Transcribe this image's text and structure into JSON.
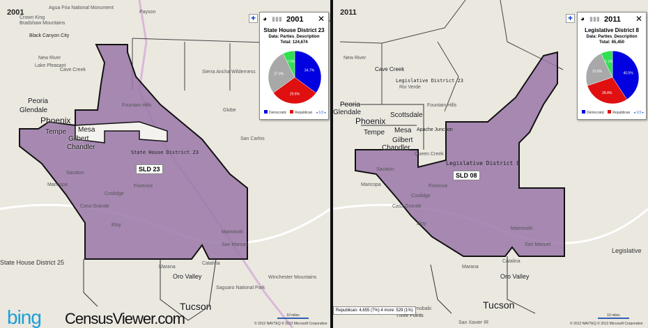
{
  "left": {
    "year": "2001",
    "district_label": "SLD 23",
    "district_name_on_map": "State House District 23",
    "adjacent_district": "State House District 25",
    "popup": {
      "year": "2001",
      "title": "State House District 23",
      "data": "Data: Parties_Description",
      "total": "Total: 124,674",
      "slices": [
        {
          "party": "Democratic",
          "pct": 34.7,
          "label": "34.7%",
          "color": "#0000e0"
        },
        {
          "party": "Republican",
          "pct": 29.6,
          "label": "29.6%",
          "color": "#e01010"
        },
        {
          "party": "Other",
          "pct": 27.4,
          "label": "27.4%",
          "color": "#a8a8a8"
        },
        {
          "party": "Other",
          "pct": 7.2,
          "label": "7.2%",
          "color": "#30e050"
        }
      ],
      "legend": [
        "Democratic",
        "Republican"
      ],
      "pager": "1/3"
    },
    "places": [
      "Crown King",
      "Bradshaw Mountains",
      "Agua Fria National Monument",
      "Black Canyon City",
      "New River",
      "Lake Pleasant",
      "Cave Creek",
      "Peoria",
      "Glendale",
      "Phoenix",
      "Tempe",
      "Mesa",
      "Gilbert",
      "Chandler",
      "Fountain Hills",
      "Payson",
      "Sierra Ancha Wilderness",
      "Globe",
      "San Carlos",
      "Sacaton",
      "Maricopa",
      "Casa Grande",
      "Coolidge",
      "Florence",
      "Eloy",
      "Marana",
      "Oro Valley",
      "Tucson",
      "Catalina",
      "Mammoth",
      "San Manuel",
      "Saguaro National Park",
      "Winchester Mountains"
    ],
    "copyright": "© 2012 NAVTEQ   © 2012 Microsoft Corporation",
    "scale": "10 miles"
  },
  "right": {
    "year": "2011",
    "district_label": "SLD 08",
    "district_name_on_map": "Legislative District 8",
    "adjacent_district": "Legislative District 23",
    "edge_label": "Legislative",
    "popup": {
      "year": "2011",
      "title": "Legislative District 8",
      "data": "Data: Parties_Description",
      "total": "Total: 65,450",
      "slices": [
        {
          "party": "Democratic",
          "pct": 40.5,
          "label": "40.5%",
          "color": "#0000e0"
        },
        {
          "party": "Republican",
          "pct": 28.8,
          "label": "28.8%",
          "color": "#e01010"
        },
        {
          "party": "Other",
          "pct": 22.8,
          "label": "22.8%",
          "color": "#a8a8a8"
        },
        {
          "party": "Other",
          "pct": 7.1,
          "label": "7.1%",
          "color": "#30e050"
        }
      ],
      "legend": [
        "Democratic",
        "Republican"
      ],
      "pager": "1/3"
    },
    "places": [
      "New River",
      "Cave Creek",
      "Rio Verde",
      "Peoria",
      "Glendale",
      "Phoenix",
      "Scottsdale",
      "Tempe",
      "Mesa",
      "Gilbert",
      "Chandler",
      "Apache Junction",
      "Queen Creek",
      "Fountain Hills",
      "Sacaton",
      "Maricopa",
      "Casa Grande",
      "Coolidge",
      "Florence",
      "Eloy",
      "Marana",
      "Three Points",
      "Tucson",
      "Oro Valley",
      "Catalina",
      "Mammoth",
      "San Manuel",
      "San Xavier IR",
      "North Comobabi"
    ],
    "status": "Republican: 4,655 (7%)  4 more: 529 (1%)",
    "copyright": "© 2012 NAVTEQ   © 2012 Microsoft Corporation",
    "scale": "10 miles"
  },
  "branding": {
    "bing": "bing",
    "censusviewer": "CensusViewer.com"
  },
  "colors": {
    "district_fill": "#9a77a8",
    "district_border": "#111111",
    "map_bg": "#ebe8e0"
  }
}
